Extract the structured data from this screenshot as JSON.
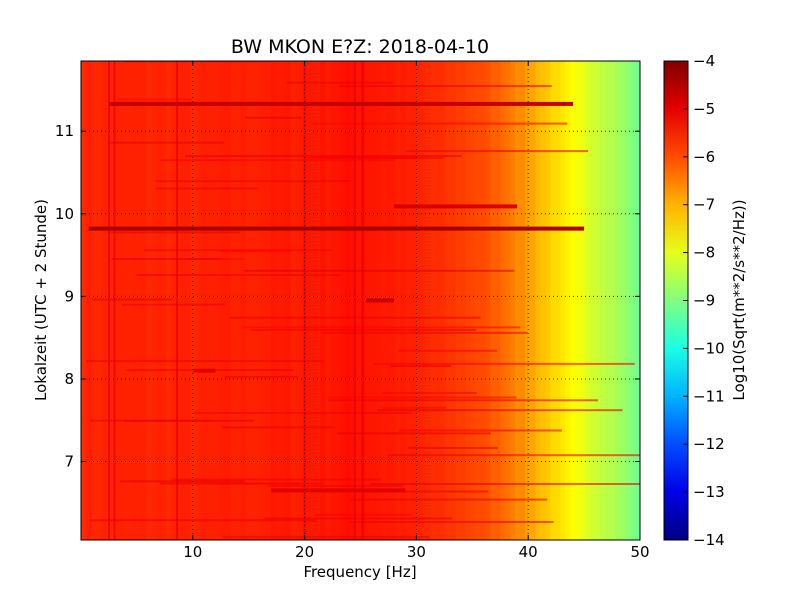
{
  "chart_data": {
    "type": "heatmap",
    "title": "BW MKON E?Z: 2018-04-10",
    "xlabel": "Frequency [Hz]",
    "ylabel": "Lokalzeit (UTC + 2 Stunde)",
    "xlim": [
      0,
      50
    ],
    "ylim": [
      11.85,
      6.05
    ],
    "x_ticks": [
      10,
      20,
      30,
      40,
      50
    ],
    "y_ticks": [
      7,
      8,
      9,
      10,
      11
    ],
    "grid": true,
    "colorbar": {
      "label": "Log10(Sqrt(m**2/s**2/Hz))",
      "range": [
        -14,
        -4
      ],
      "ticks": [
        -4,
        -5,
        -6,
        -7,
        -8,
        -9,
        -10,
        -11,
        -12,
        -13,
        -14
      ],
      "colormap": "jet"
    },
    "spectral_profile": {
      "frequency_hz": [
        0,
        5,
        10,
        20,
        25,
        30,
        35,
        38,
        40,
        42,
        44,
        46,
        48,
        50
      ],
      "log_level": [
        -5.6,
        -5.6,
        -5.6,
        -5.5,
        -5.4,
        -5.6,
        -5.9,
        -6.3,
        -6.8,
        -7.3,
        -7.8,
        -8.2,
        -8.6,
        -9.2
      ]
    },
    "narrowband_lines_hz": [
      2.5,
      3.0,
      8.6,
      20.0,
      24.5,
      25.2
    ],
    "broadband_bursts": [
      {
        "time": 9.82,
        "f_start": 0.7,
        "f_end": 45,
        "level": -4.4
      },
      {
        "time": 11.33,
        "f_start": 2.5,
        "f_end": 44,
        "level": -4.7
      },
      {
        "time": 10.09,
        "f_start": 28,
        "f_end": 39,
        "level": -4.9
      },
      {
        "time": 8.95,
        "f_start": 25.5,
        "f_end": 28,
        "level": -4.7
      },
      {
        "time": 6.65,
        "f_start": 17,
        "f_end": 29,
        "level": -5.0
      },
      {
        "time": 8.1,
        "f_start": 10,
        "f_end": 12,
        "level": -5.0
      }
    ]
  }
}
